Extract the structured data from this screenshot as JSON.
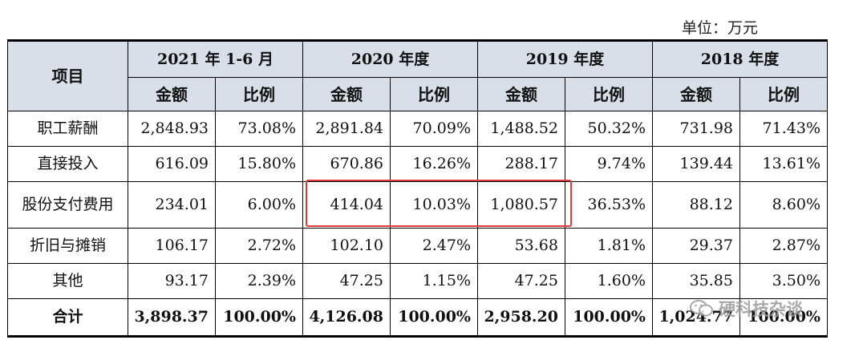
{
  "unit_label": "单位：万元",
  "header": {
    "item_label": "项目",
    "periods": [
      "2021 年 1-6 月",
      "2020 年度",
      "2019 年度",
      "2018 年度"
    ],
    "amount_label": "金额",
    "ratio_label": "比例"
  },
  "rows": [
    {
      "name": "职工薪酬",
      "cells": [
        "2,848.93",
        "73.08%",
        "2,891.84",
        "70.09%",
        "1,488.52",
        "50.32%",
        "731.98",
        "71.43%"
      ]
    },
    {
      "name": "直接投入",
      "cells": [
        "616.09",
        "15.80%",
        "670.86",
        "16.26%",
        "288.17",
        "9.74%",
        "139.44",
        "13.61%"
      ]
    },
    {
      "name": "股份支付费用",
      "cells": [
        "234.01",
        "6.00%",
        "414.04",
        "10.03%",
        "1,080.57",
        "36.53%",
        "88.12",
        "8.60%"
      ]
    },
    {
      "name": "折旧与摊销",
      "cells": [
        "106.17",
        "2.72%",
        "102.10",
        "2.47%",
        "53.68",
        "1.81%",
        "29.37",
        "2.87%"
      ]
    },
    {
      "name": "其他",
      "cells": [
        "93.17",
        "2.39%",
        "47.25",
        "1.15%",
        "47.25",
        "1.60%",
        "35.85",
        "3.50%"
      ]
    }
  ],
  "total": {
    "name": "合计",
    "cells": [
      "3,898.37",
      "100.00%",
      "4,126.08",
      "100.00%",
      "2,958.20",
      "100.00%",
      "1,024.77",
      "100.00%"
    ]
  },
  "watermark": "硬科技杂谈",
  "colors": {
    "header_bg": "#d9dfe8",
    "highlight": "#e23b3b",
    "watermark": "#9a9a9a"
  }
}
